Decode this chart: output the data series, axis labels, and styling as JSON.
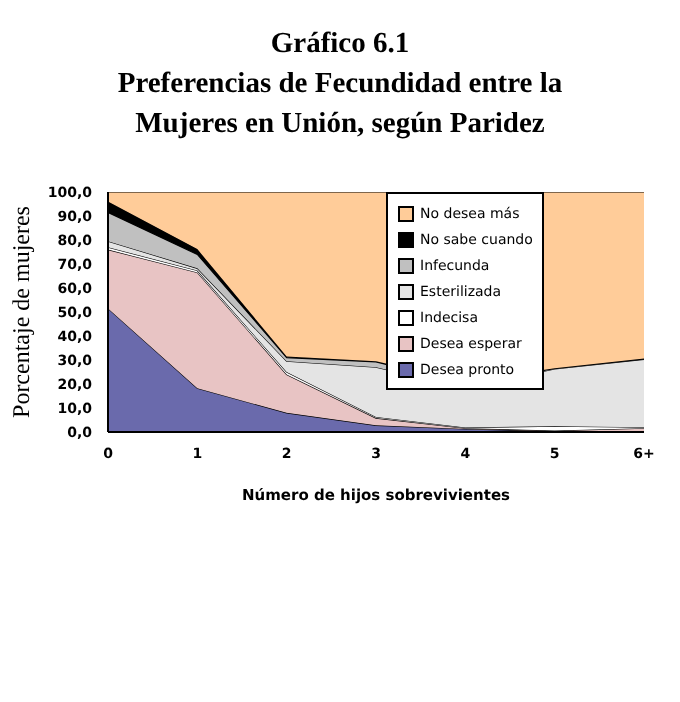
{
  "chart_data": {
    "type": "area",
    "stacked": true,
    "title": "Gráfico 6.1\nPreferencias de Fecundidad entre la\nMujeres en Unión, según Paridez",
    "xlabel": "Número de hijos sobrevivientes",
    "ylabel": "Porcentaje de mujeres",
    "categories": [
      "0",
      "1",
      "2",
      "3",
      "4",
      "5",
      "6+"
    ],
    "series": [
      {
        "name": "Desea pronto",
        "color": "#6a6aac",
        "values": [
          51.5,
          18.2,
          8.0,
          2.8,
          1.3,
          0.3,
          0.2
        ]
      },
      {
        "name": "Desea esperar",
        "color": "#e8c4c4",
        "values": [
          24.5,
          48.3,
          16.0,
          3.0,
          0.3,
          0.3,
          1.4
        ]
      },
      {
        "name": "Indecisa",
        "color": "#ffffff",
        "values": [
          1.0,
          0.8,
          1.0,
          0.5,
          0.3,
          1.8,
          0.4
        ]
      },
      {
        "name": "Esterilizada",
        "color": "#e4e4e4",
        "values": [
          2.5,
          0.9,
          4.5,
          20.7,
          16.4,
          23.9,
          28.3
        ]
      },
      {
        "name": "Infecunda",
        "color": "#c0c0c0",
        "values": [
          12.0,
          5.8,
          1.5,
          2.2,
          1.7,
          0.2,
          0.2
        ]
      },
      {
        "name": "No sabe cuando",
        "color": "#000000",
        "values": [
          4.5,
          2.2,
          0.5,
          0.3,
          1.0,
          0.1,
          0.1
        ]
      },
      {
        "name": "No desea más",
        "color": "#ffcc99",
        "values": [
          4.0,
          23.8,
          68.5,
          70.5,
          79.0,
          73.4,
          69.4
        ]
      }
    ],
    "ylim": [
      0,
      100
    ],
    "yticks": [
      {
        "value": 0,
        "label": "0,0"
      },
      {
        "value": 10,
        "label": "10,0"
      },
      {
        "value": 20,
        "label": "20,0"
      },
      {
        "value": 30,
        "label": "30,0"
      },
      {
        "value": 40,
        "label": "40,0"
      },
      {
        "value": 50,
        "label": "50,0"
      },
      {
        "value": 60,
        "label": "60,0"
      },
      {
        "value": 70,
        "label": "70,0"
      },
      {
        "value": 80,
        "label": "80,0"
      },
      {
        "value": 90,
        "label": "90,0"
      },
      {
        "value": 100,
        "label": "100,0"
      }
    ],
    "grid": false,
    "legend": "top right"
  }
}
